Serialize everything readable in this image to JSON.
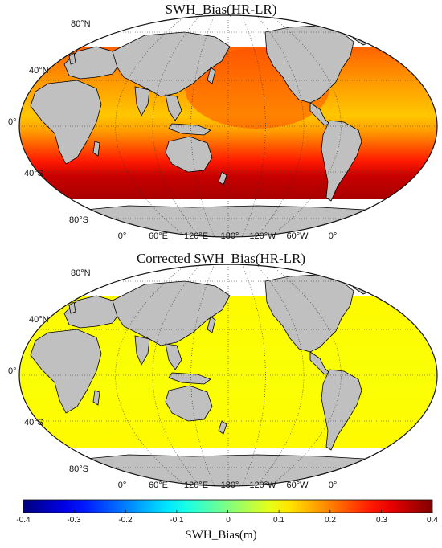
{
  "maps": [
    {
      "title": "SWH_Bias(HR-LR)",
      "lat_labels": [
        "80°N",
        "40°N",
        "0°",
        "40°S",
        "80°S"
      ],
      "lon_labels": [
        "0°",
        "60°E",
        "120°E",
        "180°",
        "120°W",
        "60°W",
        "0°"
      ],
      "field": "large-positive-bias"
    },
    {
      "title": "Corrected SWH_Bias(HR-LR)",
      "lat_labels": [
        "80°N",
        "40°N",
        "0°",
        "40°S",
        "80°S"
      ],
      "lon_labels": [
        "0°",
        "60°E",
        "120°E",
        "180°",
        "120°W",
        "60°W",
        "0°"
      ],
      "field": "near-zero-bias"
    }
  ],
  "colorbar": {
    "title": "SWH_Bias(m)",
    "ticks": [
      "-0.4",
      "-0.3",
      "-0.2",
      "-0.1",
      "0",
      "0.1",
      "0.2",
      "0.3",
      "0.4"
    ],
    "min": -0.4,
    "max": 0.4,
    "colormap": "jet"
  },
  "colors": {
    "land": "#c0c0c0",
    "coast": "#000000",
    "grid": "#333333"
  }
}
